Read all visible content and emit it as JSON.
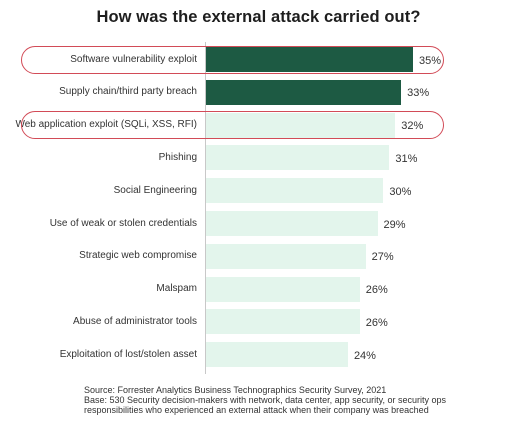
{
  "chart_data": {
    "type": "bar",
    "orientation": "horizontal",
    "title": "How was the external attack carried out?",
    "categories": [
      "Software vulnerability exploit",
      "Supply chain/third party breach",
      "Web application exploit (SQLi, XSS, RFI)",
      "Phishing",
      "Social Engineering",
      "Use of weak or stolen credentials",
      "Strategic web compromise",
      "Malspam",
      "Abuse of administrator tools",
      "Exploitation of lost/stolen asset"
    ],
    "values": [
      35,
      33,
      32,
      31,
      30,
      29,
      27,
      26,
      26,
      24
    ],
    "value_labels": [
      "35%",
      "33%",
      "32%",
      "31%",
      "30%",
      "29%",
      "27%",
      "26%",
      "26%",
      "24%"
    ],
    "xlim": [
      0,
      35
    ],
    "grid": false,
    "legend": "none",
    "highlighted_categories": [
      0,
      2
    ],
    "dark_categories": [
      0,
      1
    ]
  },
  "colors": {
    "dark_bar": "#1d5a43",
    "light_bar": "#e3f5ec",
    "highlight_outline": "#d24b57"
  },
  "footnote": {
    "source": "Source: Forrester Analytics Business Technographics Security Survey, 2021",
    "base_line1": "Base: 530 Security decision-makers with network, data center, app security, or security ops",
    "base_line2": "responsibilities who experienced an external attack when their company was breached"
  }
}
